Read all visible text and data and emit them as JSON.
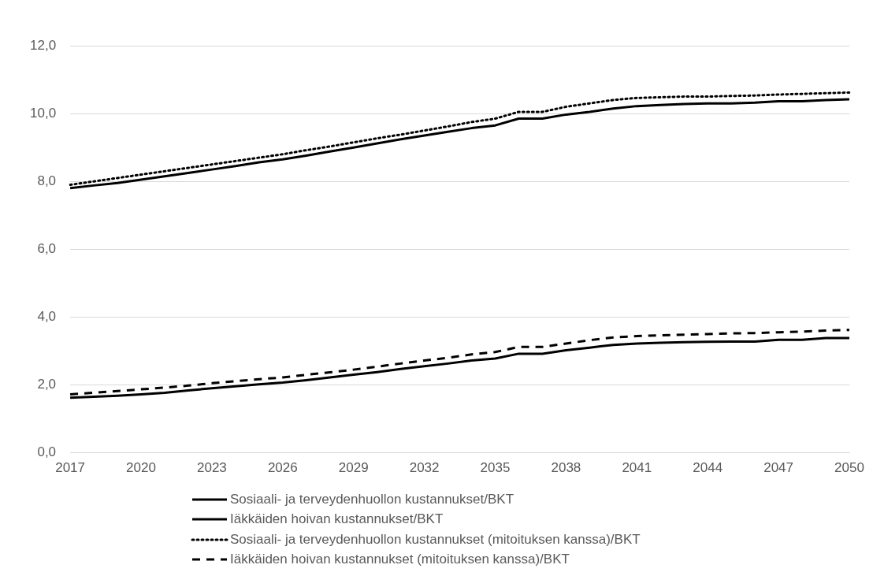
{
  "chart_data": {
    "type": "line",
    "categories": [
      "2017",
      null,
      null,
      "2020",
      null,
      null,
      "2023",
      null,
      null,
      "2026",
      null,
      null,
      "2029",
      null,
      null,
      "2032",
      null,
      null,
      "2035",
      null,
      null,
      "2038",
      null,
      null,
      "2041",
      null,
      null,
      "2044",
      null,
      null,
      "2047",
      null,
      null,
      "2050"
    ],
    "series": [
      {
        "name": "Sosiaali- ja terveydenhuollon kustannukset/BKT",
        "color": "#000000",
        "line_style": "solid",
        "values": [
          7.8,
          7.88,
          7.95,
          8.05,
          8.15,
          8.25,
          8.35,
          8.45,
          8.56,
          8.65,
          8.76,
          8.88,
          9.0,
          9.12,
          9.24,
          9.35,
          9.46,
          9.57,
          9.65,
          9.85,
          9.85,
          9.97,
          10.05,
          10.15,
          10.22,
          10.25,
          10.28,
          10.3,
          10.3,
          10.32,
          10.36,
          10.36,
          10.4,
          10.42
        ]
      },
      {
        "name": "Iäkkäiden hoivan kustannukset/BKT",
        "color": "#000000",
        "line_style": "solid",
        "values": [
          1.62,
          1.65,
          1.68,
          1.72,
          1.77,
          1.84,
          1.9,
          1.96,
          2.02,
          2.07,
          2.14,
          2.22,
          2.3,
          2.38,
          2.47,
          2.55,
          2.63,
          2.72,
          2.78,
          2.92,
          2.92,
          3.02,
          3.1,
          3.18,
          3.22,
          3.24,
          3.26,
          3.27,
          3.28,
          3.28,
          3.33,
          3.33,
          3.38,
          3.38
        ]
      },
      {
        "name": "Sosiaali- ja terveydenhuollon kustannukset (mitoituksen kanssa)/BKT",
        "color": "#000000",
        "line_style": "dotted",
        "values": [
          7.9,
          8.0,
          8.1,
          8.2,
          8.3,
          8.4,
          8.5,
          8.6,
          8.7,
          8.8,
          8.92,
          9.03,
          9.15,
          9.27,
          9.38,
          9.5,
          9.62,
          9.75,
          9.85,
          10.05,
          10.05,
          10.2,
          10.3,
          10.4,
          10.46,
          10.48,
          10.5,
          10.5,
          10.52,
          10.53,
          10.56,
          10.58,
          10.6,
          10.62
        ]
      },
      {
        "name": "Iäkkäiden hoivan kustannukset (mitoituksen kanssa)/BKT",
        "color": "#000000",
        "line_style": "dashed",
        "values": [
          1.72,
          1.77,
          1.82,
          1.87,
          1.92,
          1.98,
          2.05,
          2.11,
          2.17,
          2.22,
          2.3,
          2.37,
          2.45,
          2.54,
          2.63,
          2.72,
          2.8,
          2.9,
          2.97,
          3.12,
          3.12,
          3.22,
          3.32,
          3.4,
          3.44,
          3.46,
          3.48,
          3.5,
          3.52,
          3.53,
          3.55,
          3.57,
          3.6,
          3.62
        ]
      }
    ],
    "ylim": [
      0,
      12
    ],
    "yticks": [
      {
        "value": 0,
        "label": "0,0"
      },
      {
        "value": 2,
        "label": "2,0"
      },
      {
        "value": 4,
        "label": "4,0"
      },
      {
        "value": 6,
        "label": "6,0"
      },
      {
        "value": 8,
        "label": "8,0"
      },
      {
        "value": 10,
        "label": "10,0"
      },
      {
        "value": 12,
        "label": "12,0"
      }
    ],
    "grid": "y",
    "legend": "bottom",
    "marker": "none"
  }
}
